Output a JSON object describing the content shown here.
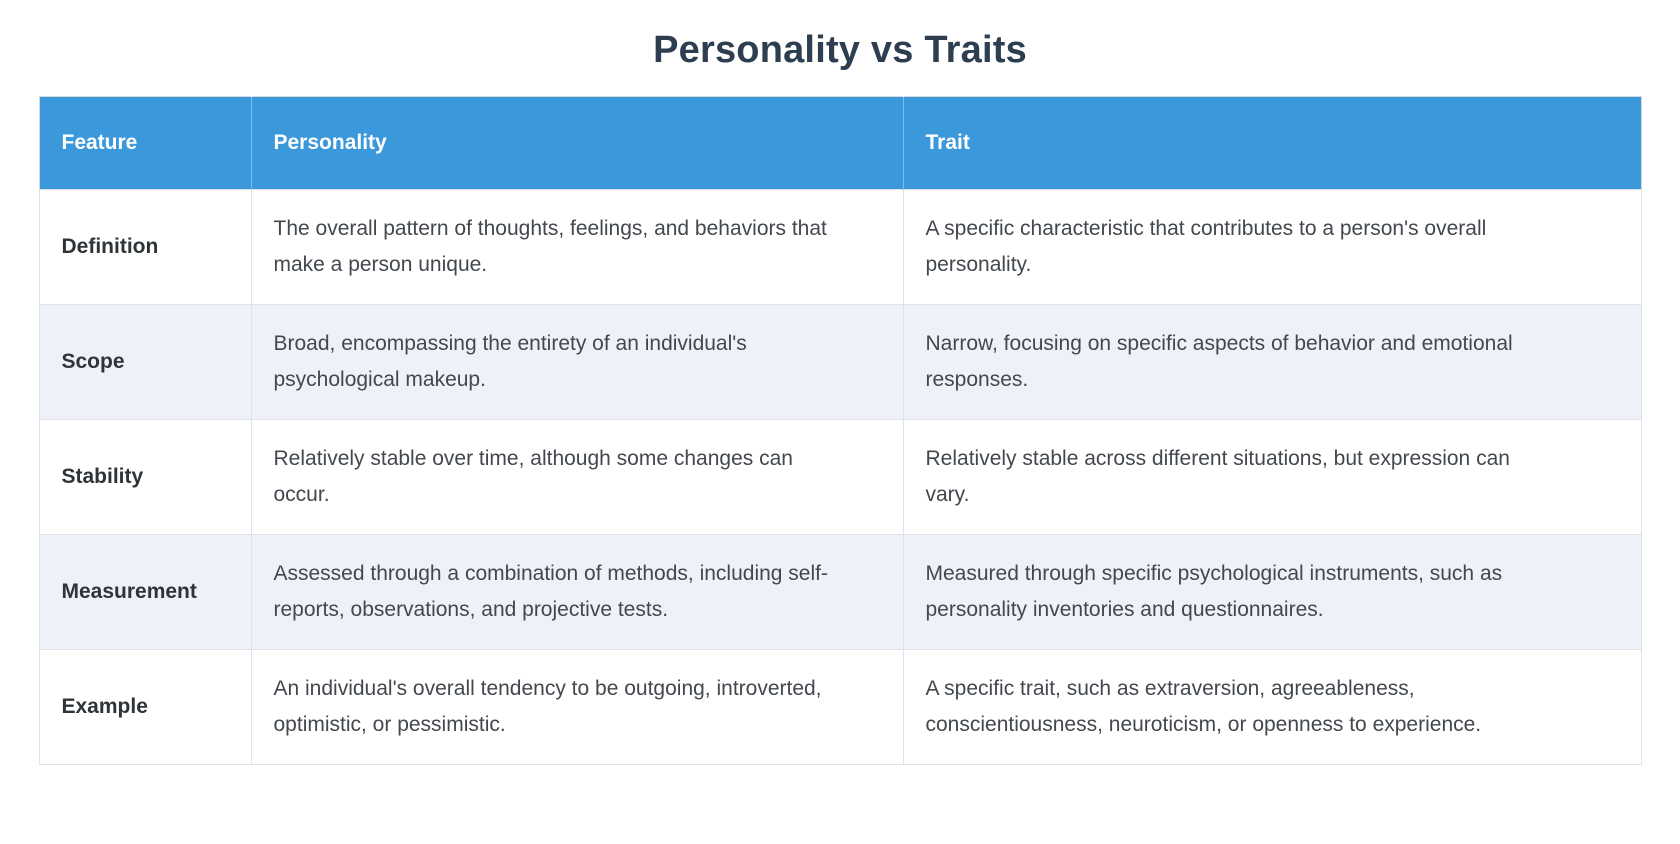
{
  "title": "Personality vs Traits",
  "colors": {
    "header_bg": "#3b98da",
    "header_text": "#ffffff",
    "title_text": "#2c3e50",
    "row_label_text": "#2f3438",
    "body_text": "#43484e",
    "row_alt_bg": "#eef2f8",
    "row_bg": "#ffffff",
    "border": "#dfe3e8"
  },
  "table": {
    "columns": [
      "Feature",
      "Personality",
      "Trait"
    ],
    "rows": [
      [
        "Definition",
        "The overall pattern of thoughts, feelings, and behaviors that make a person unique.",
        "A specific characteristic that contributes to a person's overall personality."
      ],
      [
        "Scope",
        "Broad, encompassing the entirety of an individual's psychological makeup.",
        "Narrow, focusing on specific aspects of behavior and emotional responses."
      ],
      [
        "Stability",
        "Relatively stable over time, although some changes can occur.",
        "Relatively stable across different situations, but expression can vary."
      ],
      [
        "Measurement",
        "Assessed through a combination of methods, including self-reports, observations, and projective tests.",
        "Measured through specific psychological instruments, such as personality inventories and questionnaires."
      ],
      [
        "Example",
        "An individual's overall tendency to be outgoing, introverted, optimistic, or pessimistic.",
        "A specific trait, such as extraversion, agreeableness, conscientiousness, neuroticism, or openness to experience."
      ]
    ]
  }
}
